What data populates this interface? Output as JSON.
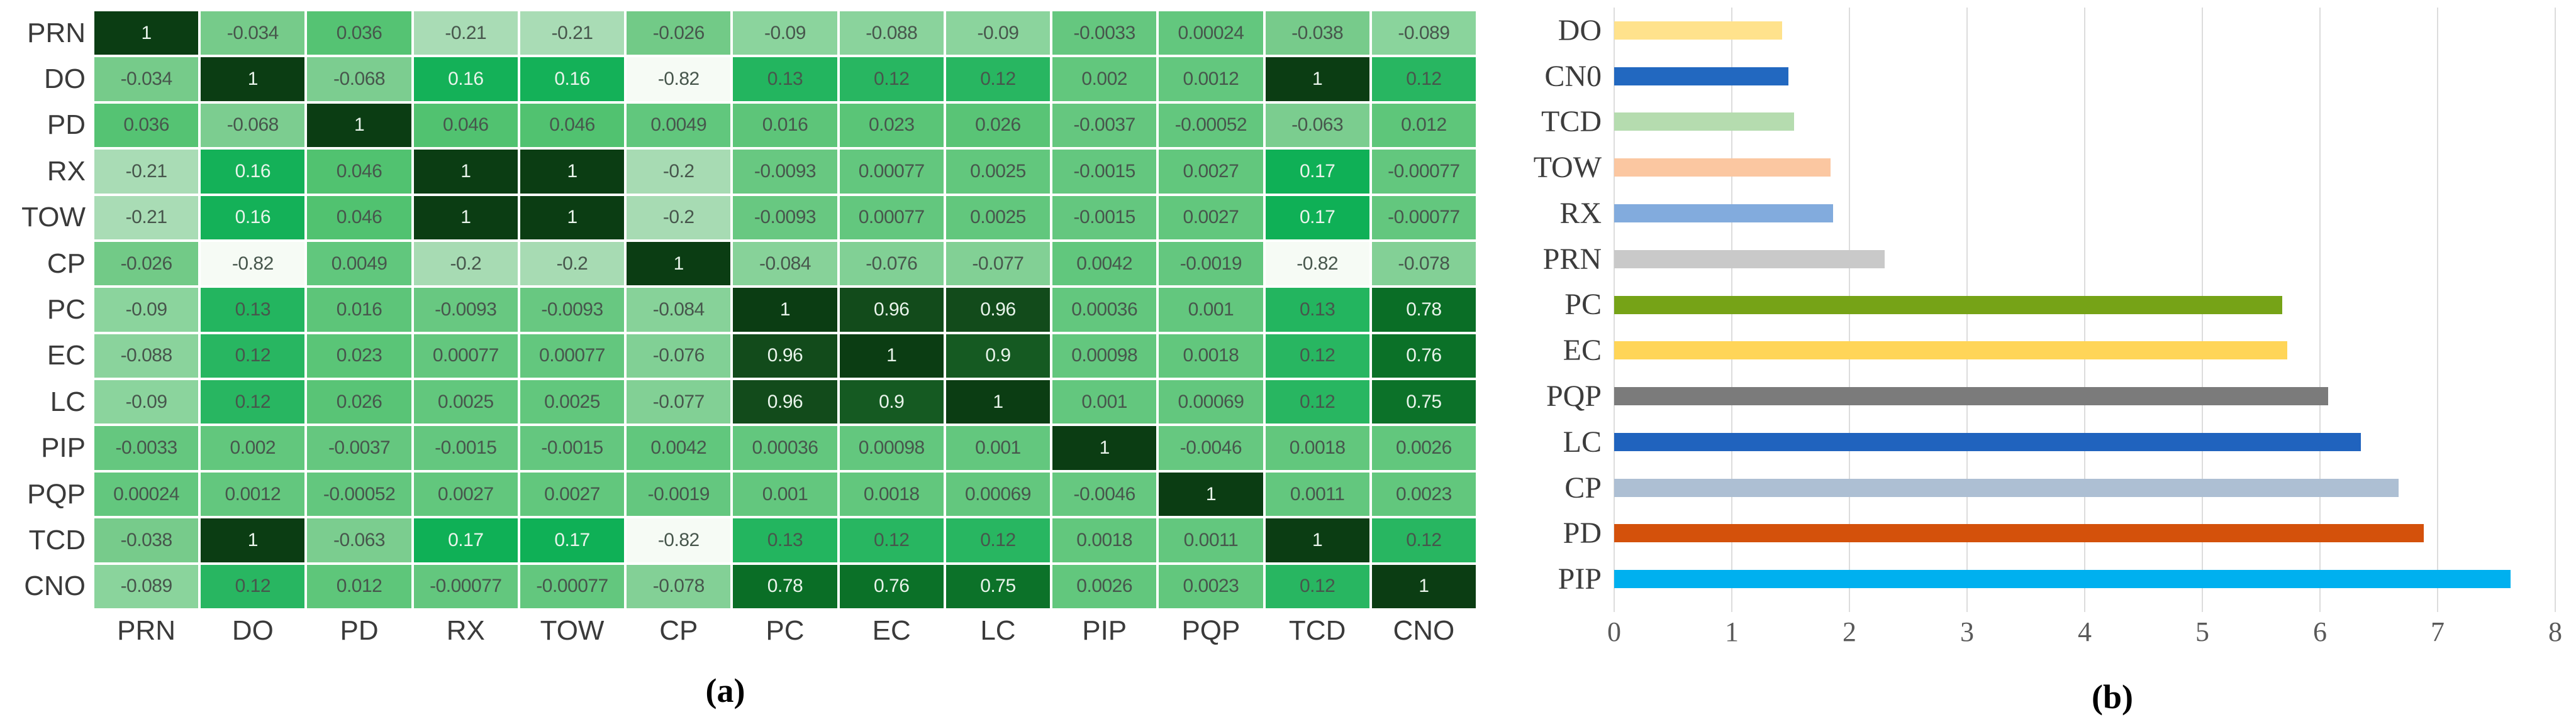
{
  "figure": {
    "caption_a": "(a)",
    "caption_b": "(b)",
    "background": "#ffffff"
  },
  "chart_data": [
    {
      "type": "heatmap",
      "panel": "a",
      "row_labels": [
        "PRN",
        "DO",
        "PD",
        "RX",
        "TOW",
        "CP",
        "PC",
        "EC",
        "LC",
        "PIP",
        "PQP",
        "TCD",
        "CNO"
      ],
      "col_labels": [
        "PRN",
        "DO",
        "PD",
        "RX",
        "TOW",
        "CP",
        "PC",
        "EC",
        "LC",
        "PIP",
        "PQP",
        "TCD",
        "CNO"
      ],
      "matrix": [
        [
          "1",
          "-0.034",
          "0.036",
          "-0.21",
          "-0.21",
          "-0.026",
          "-0.09",
          "-0.088",
          "-0.09",
          "-0.0033",
          "0.00024",
          "-0.038",
          "-0.089"
        ],
        [
          "-0.034",
          "1",
          "-0.068",
          "0.16",
          "0.16",
          "-0.82",
          "0.13",
          "0.12",
          "0.12",
          "0.002",
          "0.0012",
          "1",
          "0.12"
        ],
        [
          "0.036",
          "-0.068",
          "1",
          "0.046",
          "0.046",
          "0.0049",
          "0.016",
          "0.023",
          "0.026",
          "-0.0037",
          "-0.00052",
          "-0.063",
          "0.012"
        ],
        [
          "-0.21",
          "0.16",
          "0.046",
          "1",
          "1",
          "-0.2",
          "-0.0093",
          "0.00077",
          "0.0025",
          "-0.0015",
          "0.0027",
          "0.17",
          "-0.00077"
        ],
        [
          "-0.21",
          "0.16",
          "0.046",
          "1",
          "1",
          "-0.2",
          "-0.0093",
          "0.00077",
          "0.0025",
          "-0.0015",
          "0.0027",
          "0.17",
          "-0.00077"
        ],
        [
          "-0.026",
          "-0.82",
          "0.0049",
          "-0.2",
          "-0.2",
          "1",
          "-0.084",
          "-0.076",
          "-0.077",
          "0.0042",
          "-0.0019",
          "-0.82",
          "-0.078"
        ],
        [
          "-0.09",
          "0.13",
          "0.016",
          "-0.0093",
          "-0.0093",
          "-0.084",
          "1",
          "0.96",
          "0.96",
          "0.00036",
          "0.001",
          "0.13",
          "0.78"
        ],
        [
          "-0.088",
          "0.12",
          "0.023",
          "0.00077",
          "0.00077",
          "-0.076",
          "0.96",
          "1",
          "0.9",
          "0.00098",
          "0.0018",
          "0.12",
          "0.76"
        ],
        [
          "-0.09",
          "0.12",
          "0.026",
          "0.0025",
          "0.0025",
          "-0.077",
          "0.96",
          "0.9",
          "1",
          "0.001",
          "0.00069",
          "0.12",
          "0.75"
        ],
        [
          "-0.0033",
          "0.002",
          "-0.0037",
          "-0.0015",
          "-0.0015",
          "0.0042",
          "0.00036",
          "0.00098",
          "0.001",
          "1",
          "-0.0046",
          "0.0018",
          "0.0026"
        ],
        [
          "0.00024",
          "0.0012",
          "-0.00052",
          "0.0027",
          "0.0027",
          "-0.0019",
          "0.001",
          "0.0018",
          "0.00069",
          "-0.0046",
          "1",
          "0.0011",
          "0.0023"
        ],
        [
          "-0.038",
          "1",
          "-0.063",
          "0.17",
          "0.17",
          "-0.82",
          "0.13",
          "0.12",
          "0.12",
          "0.0018",
          "0.0011",
          "1",
          "0.12"
        ],
        [
          "-0.089",
          "0.12",
          "0.012",
          "-0.00077",
          "-0.00077",
          "-0.078",
          "0.78",
          "0.76",
          "0.75",
          "0.0026",
          "0.0023",
          "0.12",
          "1"
        ]
      ],
      "value_range": [
        -0.82,
        1
      ],
      "colorscale_stops": [
        [
          -0.82,
          "#f6fbf5"
        ],
        [
          -0.21,
          "#a9dcb5"
        ],
        [
          -0.09,
          "#8bd49d"
        ],
        [
          -0.068,
          "#7ccd90"
        ],
        [
          -0.034,
          "#76cb8a"
        ],
        [
          0.0,
          "#63c77e"
        ],
        [
          0.05,
          "#4fc26f"
        ],
        [
          0.12,
          "#28b661"
        ],
        [
          0.17,
          "#0fb056"
        ],
        [
          0.75,
          "#0c7229"
        ],
        [
          0.78,
          "#0a6e26"
        ],
        [
          0.9,
          "#155a22"
        ],
        [
          0.96,
          "#124b1b"
        ],
        [
          1.0,
          "#0b3d13"
        ]
      ],
      "cell_text_dark": "#47564c",
      "cell_text_light": "#e9f4eb",
      "label_color": "#3a3a3a"
    },
    {
      "type": "bar",
      "panel": "b",
      "orientation": "horizontal",
      "categories": [
        "DO",
        "CN0",
        "TCD",
        "TOW",
        "RX",
        "PRN",
        "PC",
        "EC",
        "PQP",
        "LC",
        "CP",
        "PD",
        "PIP"
      ],
      "values": [
        1.43,
        1.48,
        1.53,
        1.84,
        1.86,
        2.3,
        5.68,
        5.72,
        6.07,
        6.35,
        6.67,
        6.88,
        7.62
      ],
      "bar_colors": [
        "#ffe28c",
        "#2268c0",
        "#b5dcaf",
        "#fbc7a1",
        "#82abdd",
        "#c9c9c9",
        "#76a317",
        "#ffd558",
        "#7b7b7b",
        "#2063be",
        "#adbfd3",
        "#d4510b",
        "#00b0ef"
      ],
      "xlim": [
        0,
        8
      ],
      "xticks": [
        "0",
        "1",
        "2",
        "3",
        "4",
        "5",
        "6",
        "7",
        "8"
      ],
      "grid": true,
      "legend": "none",
      "gridline_color": "#dcdcdc",
      "tick_color": "#595959",
      "label_color": "#3c3c3c"
    }
  ]
}
